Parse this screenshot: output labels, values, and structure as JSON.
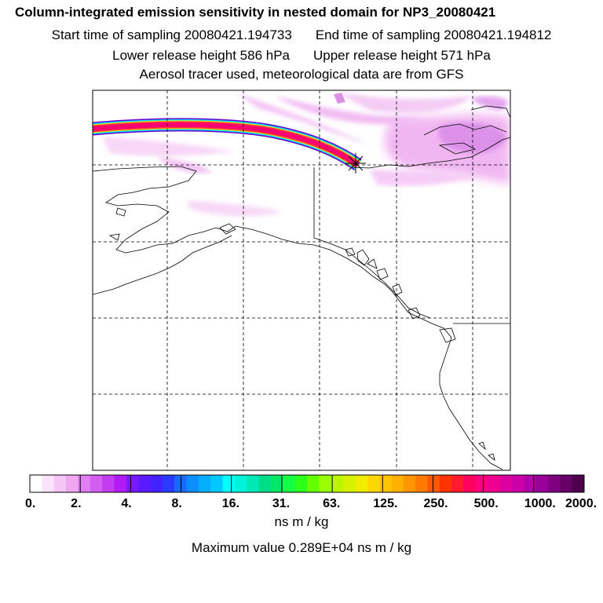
{
  "titles": {
    "main": "Column-integrated emission sensitivity in nested domain for NP3_20080421",
    "start_label": "Start time of sampling 20080421.194733",
    "end_label": "End time of sampling 20080421.194812",
    "lower_label": "Lower release height  586 hPa",
    "upper_label": "Upper release height  571 hPa",
    "tracer_note": "Aerosol tracer used, meteorological data are from GFS"
  },
  "colorbar": {
    "tick_labels": [
      "0.",
      "2.",
      "4.",
      "8.",
      "16.",
      "31.",
      "63.",
      "125.",
      "250.",
      "500.",
      "1000.",
      "2000."
    ],
    "colors": [
      "#ffffff",
      "#fbe3fb",
      "#f5c6f5",
      "#efa8ef",
      "#df7ef2",
      "#d25ef2",
      "#c43cf2",
      "#b21cf2",
      "#7a1aff",
      "#5e1aff",
      "#4422ff",
      "#2a3bff",
      "#1769ff",
      "#0d8eff",
      "#07adff",
      "#00c8ff",
      "#00ffff",
      "#00f3d9",
      "#00e8b3",
      "#00dd88",
      "#00e865",
      "#14ff44",
      "#2cff1a",
      "#66ff00",
      "#99ff00",
      "#bbf500",
      "#d6f200",
      "#f0ec00",
      "#ffd800",
      "#ffc400",
      "#ffb000",
      "#ff9600",
      "#ff7a00",
      "#ff5800",
      "#ff3300",
      "#ff1a30",
      "#ff0060",
      "#ff0080",
      "#ee0090",
      "#dd009e",
      "#cc00a8",
      "#b000a8",
      "#9a0099",
      "#7f0080",
      "#660066",
      "#4d004d"
    ],
    "units": "ns m / kg",
    "max_value": "Maximum value  0.289E+04 ns m / kg"
  },
  "map": {
    "release_marker": "star"
  }
}
